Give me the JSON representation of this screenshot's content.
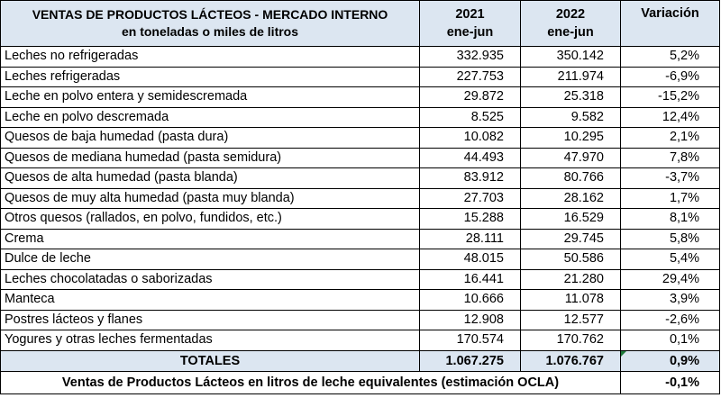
{
  "header": {
    "title_line1": "VENTAS DE PRODUCTOS LÁCTEOS - MERCADO INTERNO",
    "title_line2": "en toneladas o miles de litros",
    "col1_year": "2021",
    "col1_period": "ene-jun",
    "col2_year": "2022",
    "col2_period": "ene-jun",
    "col3": "Variación"
  },
  "rows": [
    {
      "product": "Leches no refrigeradas",
      "y2021": "332.935",
      "y2022": "350.142",
      "variation": "5,2%"
    },
    {
      "product": "Leches refrigeradas",
      "y2021": "227.753",
      "y2022": "211.974",
      "variation": "-6,9%"
    },
    {
      "product": "Leche en polvo entera y semidescremada",
      "y2021": "29.872",
      "y2022": "25.318",
      "variation": "-15,2%"
    },
    {
      "product": "Leche en polvo descremada",
      "y2021": "8.525",
      "y2022": "9.582",
      "variation": "12,4%"
    },
    {
      "product": "Quesos de baja humedad (pasta dura)",
      "y2021": "10.082",
      "y2022": "10.295",
      "variation": "2,1%"
    },
    {
      "product": "Quesos de mediana humedad (pasta semidura)",
      "y2021": "44.493",
      "y2022": "47.970",
      "variation": "7,8%"
    },
    {
      "product": "Quesos de alta humedad (pasta blanda)",
      "y2021": "83.912",
      "y2022": "80.766",
      "variation": "-3,7%"
    },
    {
      "product": "Quesos de muy alta humedad (pasta muy blanda)",
      "y2021": "27.703",
      "y2022": "28.162",
      "variation": "1,7%"
    },
    {
      "product": "Otros quesos (rallados, en polvo, fundidos, etc.)",
      "y2021": "15.288",
      "y2022": "16.529",
      "variation": "8,1%"
    },
    {
      "product": "Crema",
      "y2021": "28.111",
      "y2022": "29.745",
      "variation": "5,8%"
    },
    {
      "product": "Dulce de leche",
      "y2021": "48.015",
      "y2022": "50.586",
      "variation": "5,4%"
    },
    {
      "product": "Leches chocolatadas o saborizadas",
      "y2021": "16.441",
      "y2022": "21.280",
      "variation": "29,4%"
    },
    {
      "product": "Manteca",
      "y2021": "10.666",
      "y2022": "11.078",
      "variation": "3,9%"
    },
    {
      "product": "Postres lácteos y flanes",
      "y2021": "12.908",
      "y2022": "12.577",
      "variation": "-2,6%"
    },
    {
      "product": "Yogures y otras leches fermentadas",
      "y2021": "170.574",
      "y2022": "170.762",
      "variation": "0,1%"
    }
  ],
  "totals": {
    "label": "TOTALES",
    "y2021": "1.067.275",
    "y2022": "1.076.767",
    "variation": "0,9%"
  },
  "footer": {
    "label": "Ventas de Productos Lácteos en litros de leche equivalentes (estimación OCLA)",
    "variation": "-0,1%"
  },
  "colors": {
    "header_bg": "#dce6f1",
    "marker": "#1f7a3a"
  }
}
